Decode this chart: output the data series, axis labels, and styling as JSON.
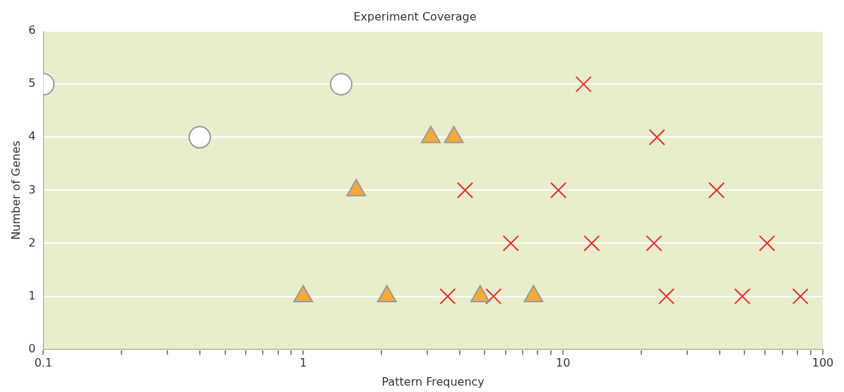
{
  "chart_data": {
    "type": "scatter",
    "title": "Experiment Coverage",
    "xlabel": "Pattern Frequency",
    "ylabel": "Number of Genes",
    "log": "x",
    "grid": "y",
    "legend": false,
    "xlim": [
      0.1,
      100
    ],
    "xticks": [
      0.1,
      {
        "value": 0.2,
        "label": null
      },
      {
        "value": 0.3,
        "label": null
      },
      {
        "value": 0.4,
        "label": null
      },
      {
        "value": 0.5,
        "label": null
      },
      {
        "value": 0.6,
        "label": null
      },
      {
        "value": 0.7,
        "label": null
      },
      {
        "value": 0.8,
        "label": null
      },
      {
        "value": 0.9,
        "label": null
      },
      1,
      {
        "value": 2,
        "label": null
      },
      {
        "value": 3,
        "label": null
      },
      {
        "value": 4,
        "label": null
      },
      {
        "value": 5,
        "label": null
      },
      {
        "value": 6,
        "label": null
      },
      {
        "value": 7,
        "label": null
      },
      {
        "value": 8,
        "label": null
      },
      {
        "value": 9,
        "label": null
      },
      10,
      {
        "value": 20,
        "label": null
      },
      {
        "value": 30,
        "label": null
      },
      {
        "value": 40,
        "label": null
      },
      {
        "value": 50,
        "label": null
      },
      {
        "value": 60,
        "label": null
      },
      {
        "value": 70,
        "label": null
      },
      {
        "value": 80,
        "label": null
      },
      {
        "value": 90,
        "label": null
      },
      100
    ],
    "ylim": [
      0,
      6
    ],
    "yticks": [
      0,
      1,
      2,
      3,
      4,
      5,
      6
    ],
    "series": [
      {
        "marker": "circle",
        "color": "#ffffff",
        "x": [
          0.1,
          1.4,
          0.4
        ],
        "values": [
          5,
          5,
          4
        ]
      },
      {
        "marker": "triangle",
        "color": "#f5a93a",
        "x": [
          1.0,
          1.6,
          2.1,
          3.1,
          3.8,
          4.8,
          7.7
        ],
        "values": [
          1,
          3,
          1,
          4,
          4,
          1,
          1
        ]
      },
      {
        "marker": "cross",
        "color": "#e0302a",
        "x": [
          12,
          23,
          4.2,
          9.6,
          39,
          6.3,
          12.9,
          22.4,
          61,
          3.6,
          5.4,
          25,
          49,
          82
        ],
        "values": [
          5,
          4,
          3,
          3,
          3,
          2,
          2,
          2,
          2,
          1,
          1,
          1,
          1,
          1
        ]
      }
    ]
  }
}
